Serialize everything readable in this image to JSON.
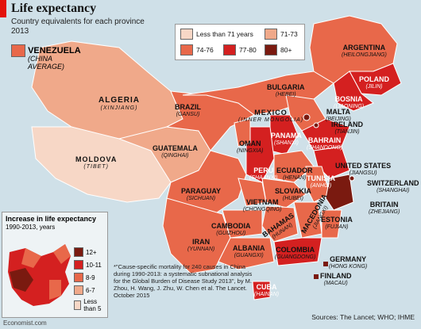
{
  "title": "Life expectancy",
  "subtitle_line1": "Country equivalents for each province",
  "subtitle_line2": "2013",
  "average": {
    "country": "VENEZUELA",
    "label": "(CHINA AVERAGE)",
    "color": "#e8684a"
  },
  "legend": [
    {
      "label": "Less than 71 years",
      "color": "#f7d7c6"
    },
    {
      "label": "71-73",
      "color": "#f0a98a"
    },
    {
      "label": "74-76",
      "color": "#e8684a"
    },
    {
      "label": "77-80",
      "color": "#d42020"
    },
    {
      "label": "80+",
      "color": "#7a1a10"
    }
  ],
  "provinces": [
    {
      "country": "ARGENTINA",
      "province": "(HEILONGJIANG)"
    },
    {
      "country": "POLAND",
      "province": "(JILIN)"
    },
    {
      "country": "BOSNIA",
      "province": "(LIAONING)"
    },
    {
      "country": "BULGARIA",
      "province": "(HEBEI)"
    },
    {
      "country": "MALTA",
      "province": "(BEIJING)"
    },
    {
      "country": "IRELAND",
      "province": "(TIANJIN)"
    },
    {
      "country": "ALGERIA",
      "province": "(XINJIANG)"
    },
    {
      "country": "BRAZIL",
      "province": "(GANSU)"
    },
    {
      "country": "MEXICO",
      "province": "(INNER MONGOLIA)"
    },
    {
      "country": "GUATEMALA",
      "province": "(QINGHAI)"
    },
    {
      "country": "OMAN",
      "province": "(NINGXIA)"
    },
    {
      "country": "PANAMA",
      "province": "(SHANXI)"
    },
    {
      "country": "BAHRAIN",
      "province": "(SHANDONG)"
    },
    {
      "country": "PERU",
      "province": "(SHAANXI)"
    },
    {
      "country": "ECUADOR",
      "province": "(HENAN)"
    },
    {
      "country": "TUNISIA",
      "province": "(ANHUI)"
    },
    {
      "country": "UNITED STATES",
      "province": "(JIANGSU)"
    },
    {
      "country": "MOLDOVA",
      "province": "(TIBET)"
    },
    {
      "country": "PARAGUAY",
      "province": "(SICHUAN)"
    },
    {
      "country": "SLOVAKIA",
      "province": "(HUBEI)"
    },
    {
      "country": "SWITZERLAND",
      "province": "(SHANGHAI)"
    },
    {
      "country": "VIETNAM",
      "province": "(CHONGQING)"
    },
    {
      "country": "BRITAIN",
      "province": "(ZHEJIANG)"
    },
    {
      "country": "CAMBODIA",
      "province": "(GUIZHOU)"
    },
    {
      "country": "BAHAMAS",
      "province": "(HUNAN)"
    },
    {
      "country": "MACEDONIA",
      "province": "(JIANGXI)"
    },
    {
      "country": "ESTONIA",
      "province": "(FUJIAN)"
    },
    {
      "country": "IRAN",
      "province": "(YUNNAN)"
    },
    {
      "country": "ALBANIA",
      "province": "(GUANGXI)"
    },
    {
      "country": "COLOMBIA",
      "province": "(GUANGDONG)"
    },
    {
      "country": "GERMANY",
      "province": "(HONG KONG)"
    },
    {
      "country": "FINLAND",
      "province": "(MACAU)"
    },
    {
      "country": "CUBA",
      "province": "(HAINAN)"
    }
  ],
  "inset": {
    "title": "Increase in life expectancy",
    "subtitle": "1990-2013, years",
    "legend": [
      {
        "label": "12+",
        "color": "#7a1a10"
      },
      {
        "label": "10-11",
        "color": "#d42020"
      },
      {
        "label": "8-9",
        "color": "#e8684a"
      },
      {
        "label": "6-7",
        "color": "#f0a98a"
      },
      {
        "label": "Less than 5",
        "color": "#f7d7c6"
      }
    ]
  },
  "note": "*\"Cause-specific mortality for 240 causes in China during 1990-2013: a systematic subnational analysis for the Global Burden of Disease Study 2013\", by M. Zhou, H. Wang, J. Zhu, W. Chen et al. The Lancet. October 2015",
  "sources": "Sources: The Lancet; WHO; IHME",
  "brand": "Economist.com"
}
